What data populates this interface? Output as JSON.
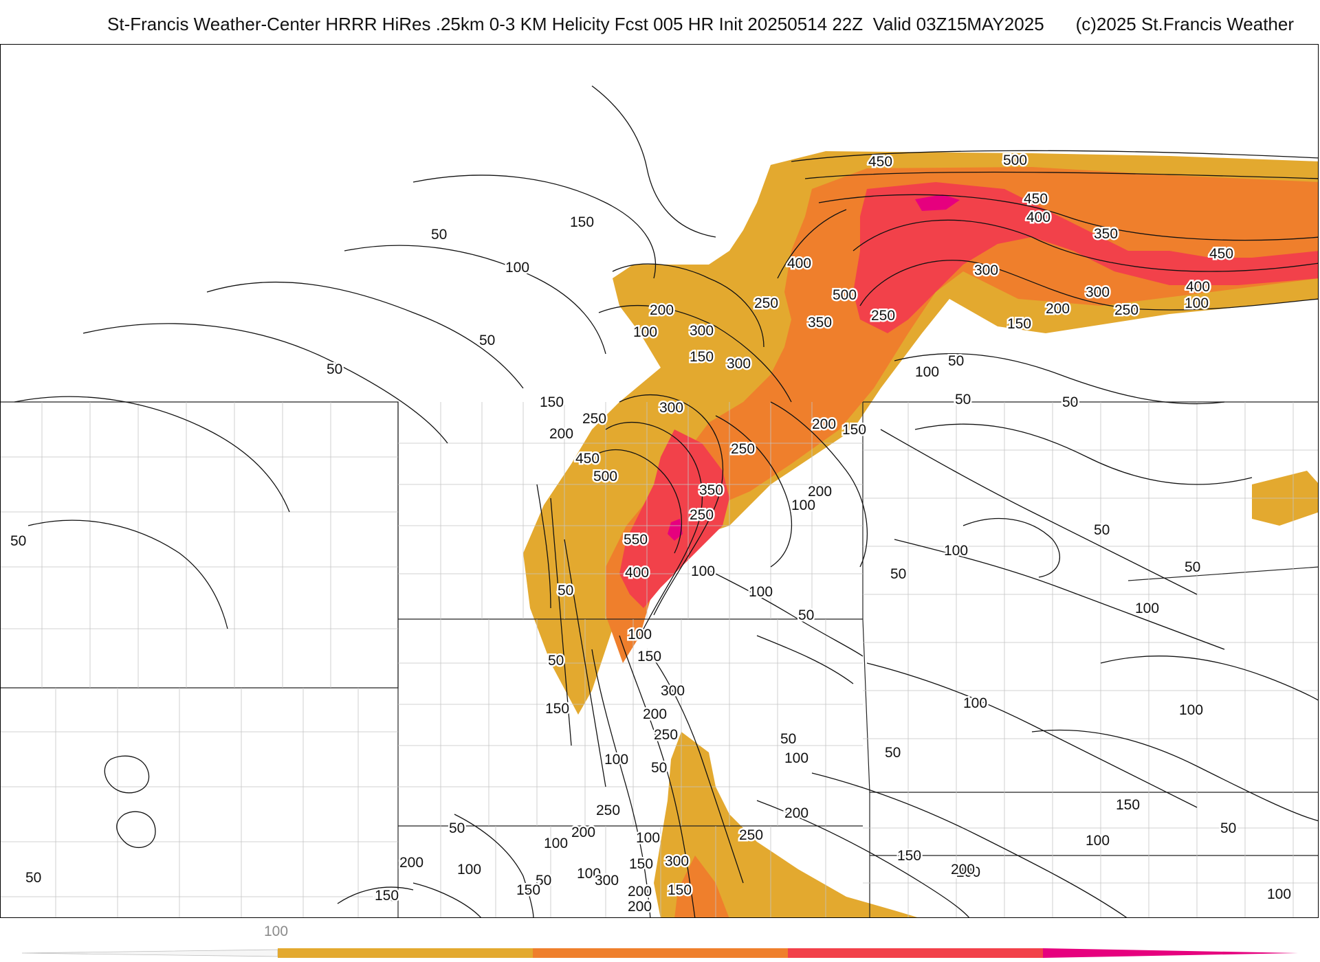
{
  "header": {
    "title": "St-Francis Weather-Center HRRR HiRes .25km 0-3 KM Helicity Fcst 005 HR Init 20250514 22Z  Valid 03Z15MAY2025",
    "copyright": "(c)2025 St.Francis Weather"
  },
  "colors": {
    "band_100_200": "#e3a92f",
    "band_200_350": "#ef7f2c",
    "band_350_500": "#f2414a",
    "band_500_plus": "#e6007e",
    "contour": "#111111",
    "state_border": "#222222",
    "county_border": "#bdbdbd"
  },
  "colorbar": {
    "min_label": "100",
    "bands": [
      {
        "from": 100,
        "to": 200,
        "color": "#e3a92f"
      },
      {
        "from": 200,
        "to": 350,
        "color": "#ef7f2c"
      },
      {
        "from": 350,
        "to": 500,
        "color": "#f2414a"
      },
      {
        "from": 500,
        "to": 650,
        "color": "#e6007e"
      }
    ]
  },
  "contour_labels": [
    {
      "text": "450"
    },
    {
      "text": "500"
    },
    {
      "text": "450"
    },
    {
      "text": "400"
    },
    {
      "text": "350"
    },
    {
      "text": "450"
    },
    {
      "text": "400"
    },
    {
      "text": "300"
    },
    {
      "text": "300"
    },
    {
      "text": "250"
    },
    {
      "text": "200"
    },
    {
      "text": "150"
    },
    {
      "text": "100"
    },
    {
      "text": "500"
    },
    {
      "text": "400"
    },
    {
      "text": "350"
    },
    {
      "text": "250"
    },
    {
      "text": "250"
    },
    {
      "text": "150"
    },
    {
      "text": "50"
    },
    {
      "text": "100"
    },
    {
      "text": "200"
    },
    {
      "text": "300"
    },
    {
      "text": "100"
    },
    {
      "text": "150"
    },
    {
      "text": "300"
    },
    {
      "text": "50"
    },
    {
      "text": "100"
    },
    {
      "text": "50"
    },
    {
      "text": "50"
    },
    {
      "text": "50"
    },
    {
      "text": "150"
    },
    {
      "text": "250"
    },
    {
      "text": "200"
    },
    {
      "text": "450"
    },
    {
      "text": "500"
    },
    {
      "text": "300"
    },
    {
      "text": "250"
    },
    {
      "text": "350"
    },
    {
      "text": "250"
    },
    {
      "text": "200"
    },
    {
      "text": "150"
    },
    {
      "text": "100"
    },
    {
      "text": "200"
    },
    {
      "text": "550"
    },
    {
      "text": "400"
    },
    {
      "text": "100"
    },
    {
      "text": "100"
    },
    {
      "text": "50"
    },
    {
      "text": "50"
    },
    {
      "text": "50"
    },
    {
      "text": "50"
    },
    {
      "text": "100"
    },
    {
      "text": "50"
    },
    {
      "text": "100"
    },
    {
      "text": "100"
    },
    {
      "text": "150"
    },
    {
      "text": "50"
    },
    {
      "text": "300"
    },
    {
      "text": "150"
    },
    {
      "text": "200"
    },
    {
      "text": "250"
    },
    {
      "text": "100"
    },
    {
      "text": "50"
    },
    {
      "text": "50"
    },
    {
      "text": "100"
    },
    {
      "text": "50"
    },
    {
      "text": "100"
    },
    {
      "text": "100"
    },
    {
      "text": "250"
    },
    {
      "text": "200"
    },
    {
      "text": "200"
    },
    {
      "text": "250"
    },
    {
      "text": "50"
    },
    {
      "text": "100"
    },
    {
      "text": "100"
    },
    {
      "text": "150"
    },
    {
      "text": "300"
    },
    {
      "text": "150"
    },
    {
      "text": "200"
    },
    {
      "text": "200"
    },
    {
      "text": "100"
    },
    {
      "text": "50"
    },
    {
      "text": "150"
    },
    {
      "text": "100"
    },
    {
      "text": "150"
    },
    {
      "text": "200"
    },
    {
      "text": "50"
    },
    {
      "text": "100"
    },
    {
      "text": "150"
    },
    {
      "text": "300"
    },
    {
      "text": "200"
    },
    {
      "text": "150"
    },
    {
      "text": "50"
    },
    {
      "text": "150"
    },
    {
      "text": "50"
    },
    {
      "text": "100"
    },
    {
      "text": "200"
    },
    {
      "text": "50"
    }
  ]
}
